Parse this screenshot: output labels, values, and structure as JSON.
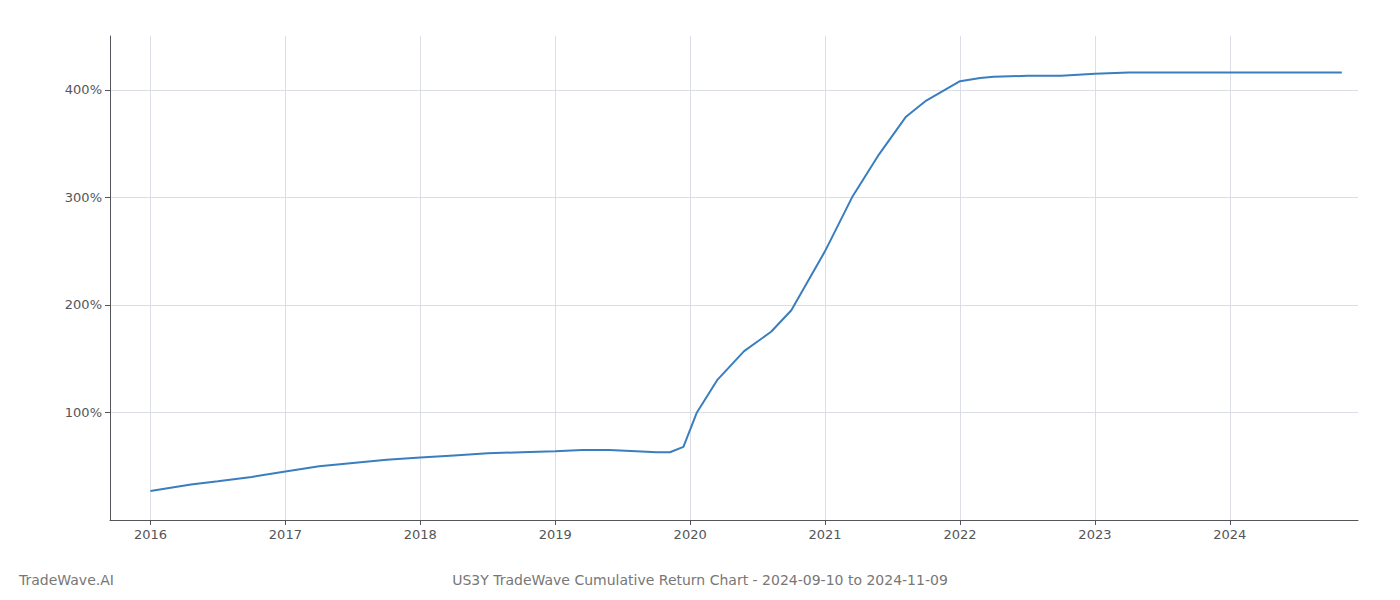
{
  "chart_data": {
    "type": "line",
    "title": "US3Y TradeWave Cumulative Return Chart - 2024-09-10 to 2024-11-09",
    "annotations": [
      "TradeWave.AI"
    ],
    "x": [
      2016.0,
      2016.15,
      2016.3,
      2016.5,
      2016.75,
      2017.0,
      2017.25,
      2017.5,
      2017.75,
      2018.0,
      2018.25,
      2018.5,
      2018.75,
      2019.0,
      2019.2,
      2019.4,
      2019.6,
      2019.75,
      2019.85,
      2019.95,
      2020.05,
      2020.2,
      2020.4,
      2020.6,
      2020.75,
      2021.0,
      2021.2,
      2021.4,
      2021.6,
      2021.75,
      2022.0,
      2022.15,
      2022.25,
      2022.5,
      2022.75,
      2023.0,
      2023.25,
      2023.5,
      2023.75,
      2024.0,
      2024.5,
      2024.83
    ],
    "values": [
      27,
      30,
      33,
      36,
      40,
      45,
      50,
      53,
      56,
      58,
      60,
      62,
      63,
      64,
      65,
      65,
      64,
      63,
      63,
      68,
      100,
      130,
      157,
      175,
      195,
      250,
      300,
      340,
      375,
      390,
      408,
      411,
      412,
      413,
      413,
      415,
      416,
      416,
      416,
      416,
      416,
      416
    ],
    "color": "#3a7ebf",
    "xlim": [
      2015.7,
      2024.95
    ],
    "xticks": [
      2016,
      2017,
      2018,
      2019,
      2020,
      2021,
      2022,
      2023,
      2024
    ],
    "ylim": [
      0,
      450
    ],
    "yticks": [
      {
        "value": 100,
        "label": "100%"
      },
      {
        "value": 200,
        "label": "200%"
      },
      {
        "value": 300,
        "label": "300%"
      },
      {
        "value": 400,
        "label": "400%"
      }
    ],
    "grid": true
  }
}
